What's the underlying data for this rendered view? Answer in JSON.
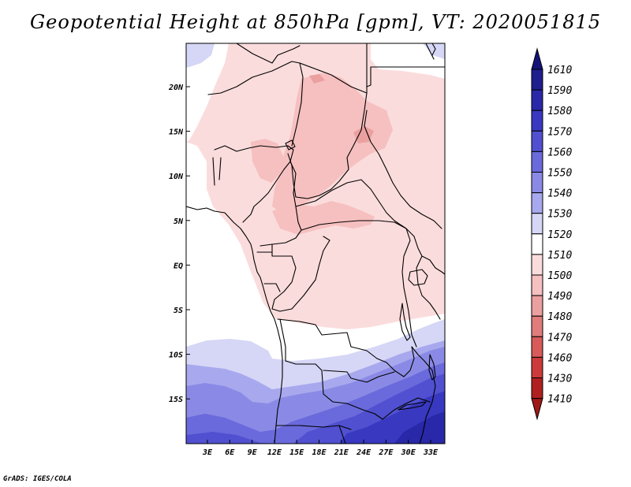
{
  "title": "Geopotential Height at 850hPa [gpm], VT: 2020051815",
  "credit": "GrADS: IGES/COLA",
  "map": {
    "lat_ticks": [
      "20N",
      "15N",
      "10N",
      "5N",
      "EQ",
      "5S",
      "10S",
      "15S"
    ],
    "lon_ticks": [
      "3E",
      "6E",
      "9E",
      "12E",
      "15E",
      "18E",
      "21E",
      "24E",
      "27E",
      "30E",
      "33E"
    ]
  },
  "colorbar": {
    "levels": [
      "1610",
      "1590",
      "1580",
      "1570",
      "1560",
      "1550",
      "1540",
      "1530",
      "1520",
      "1510",
      "1500",
      "1490",
      "1480",
      "1470",
      "1460",
      "1430",
      "1410"
    ],
    "colors": {
      "1590": "#1e1e8e",
      "1580": "#2828a8",
      "1570": "#3838c0",
      "1560": "#5050d0",
      "1550": "#6a6adc",
      "1540": "#8a8ae6",
      "1530": "#a8a8ee",
      "1520": "#d6d6f6",
      "1510": "#ffffff",
      "1500": "#fbdcdc",
      "1490": "#f6c0c0",
      "1480": "#eba0a0",
      "1470": "#e07c7c",
      "1460": "#d85a5a",
      "1430": "#cc3a3a",
      "1410": "#b02020",
      "top": "#141478",
      "bottom": "#a01818"
    }
  }
}
